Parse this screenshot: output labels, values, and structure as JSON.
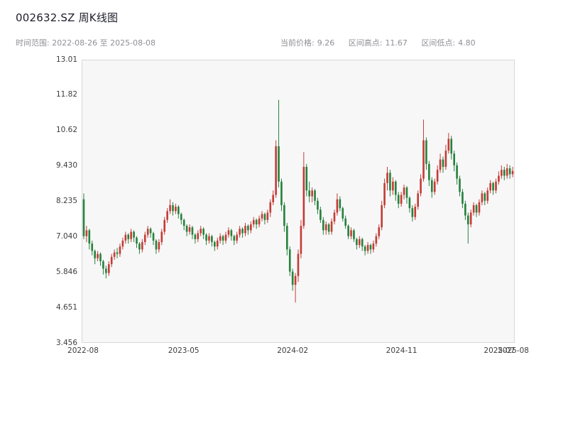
{
  "header": {
    "title": "002632.SZ 周K线图",
    "time_range": "时间范围: 2022-08-26 至 2025-08-08",
    "stats": [
      {
        "label": "当前价格:",
        "value": "9.26"
      },
      {
        "label": "区间高点:",
        "value": "11.67"
      },
      {
        "label": "区间低点:",
        "value": "4.80"
      }
    ]
  },
  "chart_data": {
    "type": "candlestick",
    "title": "002632.SZ 周K线图",
    "symbol": "002632.SZ",
    "interval": "weekly",
    "start_date": "2022-08-26",
    "end_date": "2025-08-08",
    "current_price": 9.26,
    "range_high": 11.67,
    "range_low": 4.8,
    "up_color": "#c43c35",
    "down_color": "#26823c",
    "grid": false,
    "legend": "none",
    "ylim": [
      3.456,
      13.01
    ],
    "yticks": [
      3.456,
      4.651,
      5.846,
      7.04,
      8.235,
      9.43,
      10.62,
      11.82,
      13.01
    ],
    "ytick_labels": [
      "3.456",
      "4.651",
      "5.846",
      "7.040",
      "8.235",
      "9.430",
      "10.62",
      "11.82",
      "13.01"
    ],
    "xticks": [
      {
        "label": "2022-08",
        "index": 0
      },
      {
        "label": "2023-05",
        "index": 36
      },
      {
        "label": "2024-02",
        "index": 75
      },
      {
        "label": "2024-11",
        "index": 114
      },
      {
        "label": "2025-07",
        "index": 149
      },
      {
        "label": "2025-08",
        "index": 154
      }
    ],
    "ohlc_columns": [
      "open",
      "high",
      "low",
      "close"
    ],
    "ohlc": [
      [
        8.3,
        8.5,
        6.95,
        7.05
      ],
      [
        7.05,
        7.4,
        6.85,
        7.25
      ],
      [
        7.25,
        7.3,
        6.6,
        6.8
      ],
      [
        6.8,
        6.9,
        6.4,
        6.55
      ],
      [
        6.55,
        6.6,
        6.1,
        6.3
      ],
      [
        6.3,
        6.55,
        6.2,
        6.45
      ],
      [
        6.45,
        6.5,
        6.05,
        6.2
      ],
      [
        6.2,
        6.25,
        5.75,
        5.95
      ],
      [
        5.95,
        6.05,
        5.62,
        5.8
      ],
      [
        5.8,
        6.2,
        5.7,
        6.1
      ],
      [
        6.1,
        6.45,
        6.0,
        6.35
      ],
      [
        6.35,
        6.6,
        6.25,
        6.5
      ],
      [
        6.5,
        6.65,
        6.3,
        6.45
      ],
      [
        6.45,
        6.8,
        6.35,
        6.7
      ],
      [
        6.7,
        7.0,
        6.6,
        6.9
      ],
      [
        6.9,
        7.2,
        6.8,
        7.1
      ],
      [
        7.1,
        7.15,
        6.8,
        6.95
      ],
      [
        6.95,
        7.3,
        6.85,
        7.2
      ],
      [
        7.2,
        7.25,
        6.85,
        7.0
      ],
      [
        7.0,
        7.05,
        6.65,
        6.8
      ],
      [
        6.8,
        6.85,
        6.45,
        6.6
      ],
      [
        6.6,
        6.95,
        6.5,
        6.85
      ],
      [
        6.85,
        7.2,
        6.75,
        7.1
      ],
      [
        7.1,
        7.4,
        7.0,
        7.3
      ],
      [
        7.3,
        7.35,
        7.0,
        7.15
      ],
      [
        7.15,
        7.2,
        6.75,
        6.9
      ],
      [
        6.9,
        6.95,
        6.45,
        6.6
      ],
      [
        6.6,
        6.95,
        6.5,
        6.85
      ],
      [
        6.85,
        7.3,
        6.75,
        7.2
      ],
      [
        7.2,
        7.7,
        7.1,
        7.6
      ],
      [
        7.6,
        8.0,
        7.5,
        7.9
      ],
      [
        7.9,
        8.3,
        7.8,
        8.1
      ],
      [
        8.1,
        8.2,
        7.75,
        7.9
      ],
      [
        7.9,
        8.15,
        7.8,
        8.05
      ],
      [
        8.05,
        8.1,
        7.65,
        7.8
      ],
      [
        7.8,
        7.85,
        7.45,
        7.6
      ],
      [
        7.6,
        7.65,
        7.25,
        7.4
      ],
      [
        7.4,
        7.45,
        7.05,
        7.2
      ],
      [
        7.2,
        7.45,
        7.1,
        7.35
      ],
      [
        7.35,
        7.4,
        6.95,
        7.1
      ],
      [
        7.1,
        7.15,
        6.8,
        6.95
      ],
      [
        6.95,
        7.25,
        6.85,
        7.15
      ],
      [
        7.15,
        7.4,
        7.05,
        7.3
      ],
      [
        7.3,
        7.35,
        6.95,
        7.1
      ],
      [
        7.1,
        7.15,
        6.75,
        6.9
      ],
      [
        6.9,
        7.15,
        6.8,
        7.05
      ],
      [
        7.05,
        7.1,
        6.7,
        6.85
      ],
      [
        6.85,
        6.9,
        6.55,
        6.7
      ],
      [
        6.7,
        7.0,
        6.6,
        6.9
      ],
      [
        6.9,
        7.15,
        6.8,
        7.05
      ],
      [
        7.05,
        7.1,
        6.75,
        6.9
      ],
      [
        6.9,
        7.2,
        6.8,
        7.1
      ],
      [
        7.1,
        7.35,
        7.0,
        7.25
      ],
      [
        7.25,
        7.3,
        6.9,
        7.05
      ],
      [
        7.05,
        7.1,
        6.75,
        6.9
      ],
      [
        6.9,
        7.2,
        6.8,
        7.1
      ],
      [
        7.1,
        7.4,
        7.0,
        7.3
      ],
      [
        7.3,
        7.35,
        7.0,
        7.15
      ],
      [
        7.15,
        7.5,
        7.05,
        7.4
      ],
      [
        7.4,
        7.45,
        7.1,
        7.25
      ],
      [
        7.25,
        7.55,
        7.15,
        7.45
      ],
      [
        7.45,
        7.7,
        7.35,
        7.6
      ],
      [
        7.6,
        7.65,
        7.3,
        7.45
      ],
      [
        7.45,
        7.75,
        7.35,
        7.65
      ],
      [
        7.65,
        7.9,
        7.55,
        7.8
      ],
      [
        7.8,
        7.85,
        7.45,
        7.6
      ],
      [
        7.6,
        7.95,
        7.5,
        7.85
      ],
      [
        7.85,
        8.3,
        7.7,
        8.2
      ],
      [
        8.2,
        8.6,
        8.1,
        8.45
      ],
      [
        8.45,
        10.3,
        8.35,
        10.1
      ],
      [
        10.1,
        11.67,
        8.7,
        8.9
      ],
      [
        8.9,
        9.0,
        7.9,
        8.1
      ],
      [
        8.1,
        8.2,
        7.2,
        7.4
      ],
      [
        7.4,
        7.5,
        6.4,
        6.6
      ],
      [
        6.6,
        6.7,
        5.7,
        5.85
      ],
      [
        5.85,
        5.95,
        5.2,
        5.4
      ],
      [
        5.4,
        5.8,
        4.8,
        5.7
      ],
      [
        5.7,
        6.6,
        5.5,
        6.45
      ],
      [
        6.45,
        7.6,
        6.3,
        7.4
      ],
      [
        7.4,
        9.9,
        7.3,
        9.4
      ],
      [
        9.4,
        9.5,
        8.4,
        8.6
      ],
      [
        8.6,
        8.9,
        8.2,
        8.4
      ],
      [
        8.4,
        8.7,
        8.2,
        8.6
      ],
      [
        8.6,
        8.65,
        8.1,
        8.25
      ],
      [
        8.25,
        8.35,
        7.8,
        7.95
      ],
      [
        7.95,
        8.05,
        7.5,
        7.6
      ],
      [
        7.6,
        7.7,
        7.1,
        7.25
      ],
      [
        7.25,
        7.55,
        7.1,
        7.45
      ],
      [
        7.45,
        7.5,
        7.1,
        7.2
      ],
      [
        7.2,
        7.65,
        7.1,
        7.55
      ],
      [
        7.55,
        7.95,
        7.45,
        7.85
      ],
      [
        7.85,
        8.5,
        7.75,
        8.3
      ],
      [
        8.3,
        8.4,
        7.9,
        8.0
      ],
      [
        8.0,
        8.05,
        7.55,
        7.65
      ],
      [
        7.65,
        7.75,
        7.3,
        7.4
      ],
      [
        7.4,
        7.45,
        6.95,
        7.05
      ],
      [
        7.05,
        7.35,
        6.95,
        7.25
      ],
      [
        7.25,
        7.3,
        6.85,
        6.95
      ],
      [
        6.95,
        7.0,
        6.6,
        6.75
      ],
      [
        6.75,
        7.05,
        6.65,
        6.95
      ],
      [
        6.95,
        7.0,
        6.55,
        6.7
      ],
      [
        6.7,
        6.75,
        6.4,
        6.55
      ],
      [
        6.55,
        6.85,
        6.45,
        6.75
      ],
      [
        6.75,
        6.8,
        6.45,
        6.6
      ],
      [
        6.6,
        6.9,
        6.5,
        6.8
      ],
      [
        6.8,
        7.15,
        6.7,
        7.05
      ],
      [
        7.05,
        7.45,
        6.95,
        7.35
      ],
      [
        7.35,
        8.25,
        7.25,
        8.1
      ],
      [
        8.1,
        9.0,
        8.0,
        8.85
      ],
      [
        8.85,
        9.4,
        8.6,
        9.2
      ],
      [
        9.2,
        9.3,
        8.4,
        8.6
      ],
      [
        8.6,
        9.05,
        8.45,
        8.9
      ],
      [
        8.9,
        8.95,
        8.25,
        8.45
      ],
      [
        8.45,
        8.55,
        8.0,
        8.15
      ],
      [
        8.15,
        8.55,
        8.05,
        8.45
      ],
      [
        8.45,
        8.8,
        8.3,
        8.7
      ],
      [
        8.7,
        8.75,
        8.15,
        8.35
      ],
      [
        8.35,
        8.4,
        7.85,
        8.0
      ],
      [
        8.0,
        8.1,
        7.55,
        7.7
      ],
      [
        7.7,
        8.15,
        7.6,
        8.05
      ],
      [
        8.05,
        8.6,
        7.95,
        8.5
      ],
      [
        8.5,
        9.15,
        8.4,
        9.0
      ],
      [
        9.0,
        11.0,
        8.9,
        10.3
      ],
      [
        10.3,
        10.4,
        9.3,
        9.5
      ],
      [
        9.5,
        9.6,
        8.75,
        8.95
      ],
      [
        8.95,
        9.05,
        8.35,
        8.55
      ],
      [
        8.55,
        9.0,
        8.45,
        8.9
      ],
      [
        8.9,
        9.45,
        8.8,
        9.3
      ],
      [
        9.3,
        9.85,
        9.2,
        9.65
      ],
      [
        9.65,
        9.75,
        9.2,
        9.4
      ],
      [
        9.4,
        10.15,
        9.3,
        9.95
      ],
      [
        9.95,
        10.55,
        9.85,
        10.35
      ],
      [
        10.35,
        10.45,
        9.65,
        9.85
      ],
      [
        9.85,
        9.95,
        9.25,
        9.45
      ],
      [
        9.45,
        9.55,
        8.8,
        9.0
      ],
      [
        9.0,
        9.1,
        8.4,
        8.55
      ],
      [
        8.55,
        8.65,
        8.0,
        8.15
      ],
      [
        8.15,
        8.25,
        7.6,
        7.75
      ],
      [
        7.75,
        7.85,
        6.8,
        7.45
      ],
      [
        7.45,
        7.95,
        7.35,
        7.85
      ],
      [
        7.85,
        8.2,
        7.75,
        8.1
      ],
      [
        8.1,
        8.15,
        7.7,
        7.85
      ],
      [
        7.85,
        8.3,
        7.75,
        8.2
      ],
      [
        8.2,
        8.6,
        8.1,
        8.5
      ],
      [
        8.5,
        8.55,
        8.1,
        8.25
      ],
      [
        8.25,
        8.7,
        8.15,
        8.6
      ],
      [
        8.6,
        8.95,
        8.5,
        8.85
      ],
      [
        8.85,
        8.9,
        8.45,
        8.6
      ],
      [
        8.6,
        9.0,
        8.5,
        8.9
      ],
      [
        8.9,
        9.25,
        8.8,
        9.1
      ],
      [
        9.1,
        9.45,
        9.0,
        9.3
      ],
      [
        9.3,
        9.4,
        8.95,
        9.1
      ],
      [
        9.1,
        9.5,
        9.0,
        9.35
      ],
      [
        9.35,
        9.45,
        9.0,
        9.15
      ],
      [
        9.15,
        9.4,
        9.05,
        9.26
      ]
    ]
  }
}
